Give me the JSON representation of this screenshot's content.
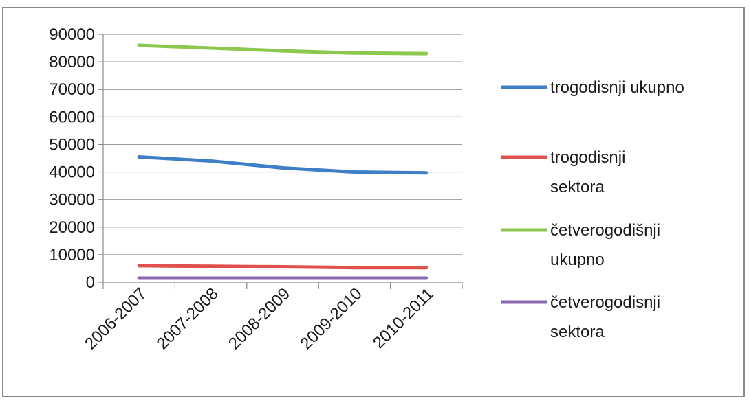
{
  "chart_data": {
    "type": "line",
    "title": "",
    "xlabel": "",
    "ylabel": "",
    "categories": [
      "2006-2007",
      "2007-2008",
      "2008-2009",
      "2009-2010",
      "2010-2011"
    ],
    "ylim": [
      0,
      90000
    ],
    "yticks": [
      0,
      10000,
      20000,
      30000,
      40000,
      50000,
      60000,
      70000,
      80000,
      90000
    ],
    "grid": true,
    "legend_position": "right",
    "series": [
      {
        "name": "trogodisnji ukupno",
        "color": "#3f7fc8",
        "values": [
          45500,
          44000,
          41500,
          40000,
          39700
        ]
      },
      {
        "name": "trogodisnji sektora",
        "color": "#e0504c",
        "values": [
          6000,
          5800,
          5600,
          5300,
          5300
        ]
      },
      {
        "name": "četverogodišnji ukupno",
        "color": "#8cc84e",
        "values": [
          86000,
          85000,
          84000,
          83200,
          83000
        ]
      },
      {
        "name": "četverogodisnji sektora",
        "color": "#8a68b0",
        "values": [
          1500,
          1500,
          1500,
          1500,
          1500
        ]
      }
    ]
  }
}
